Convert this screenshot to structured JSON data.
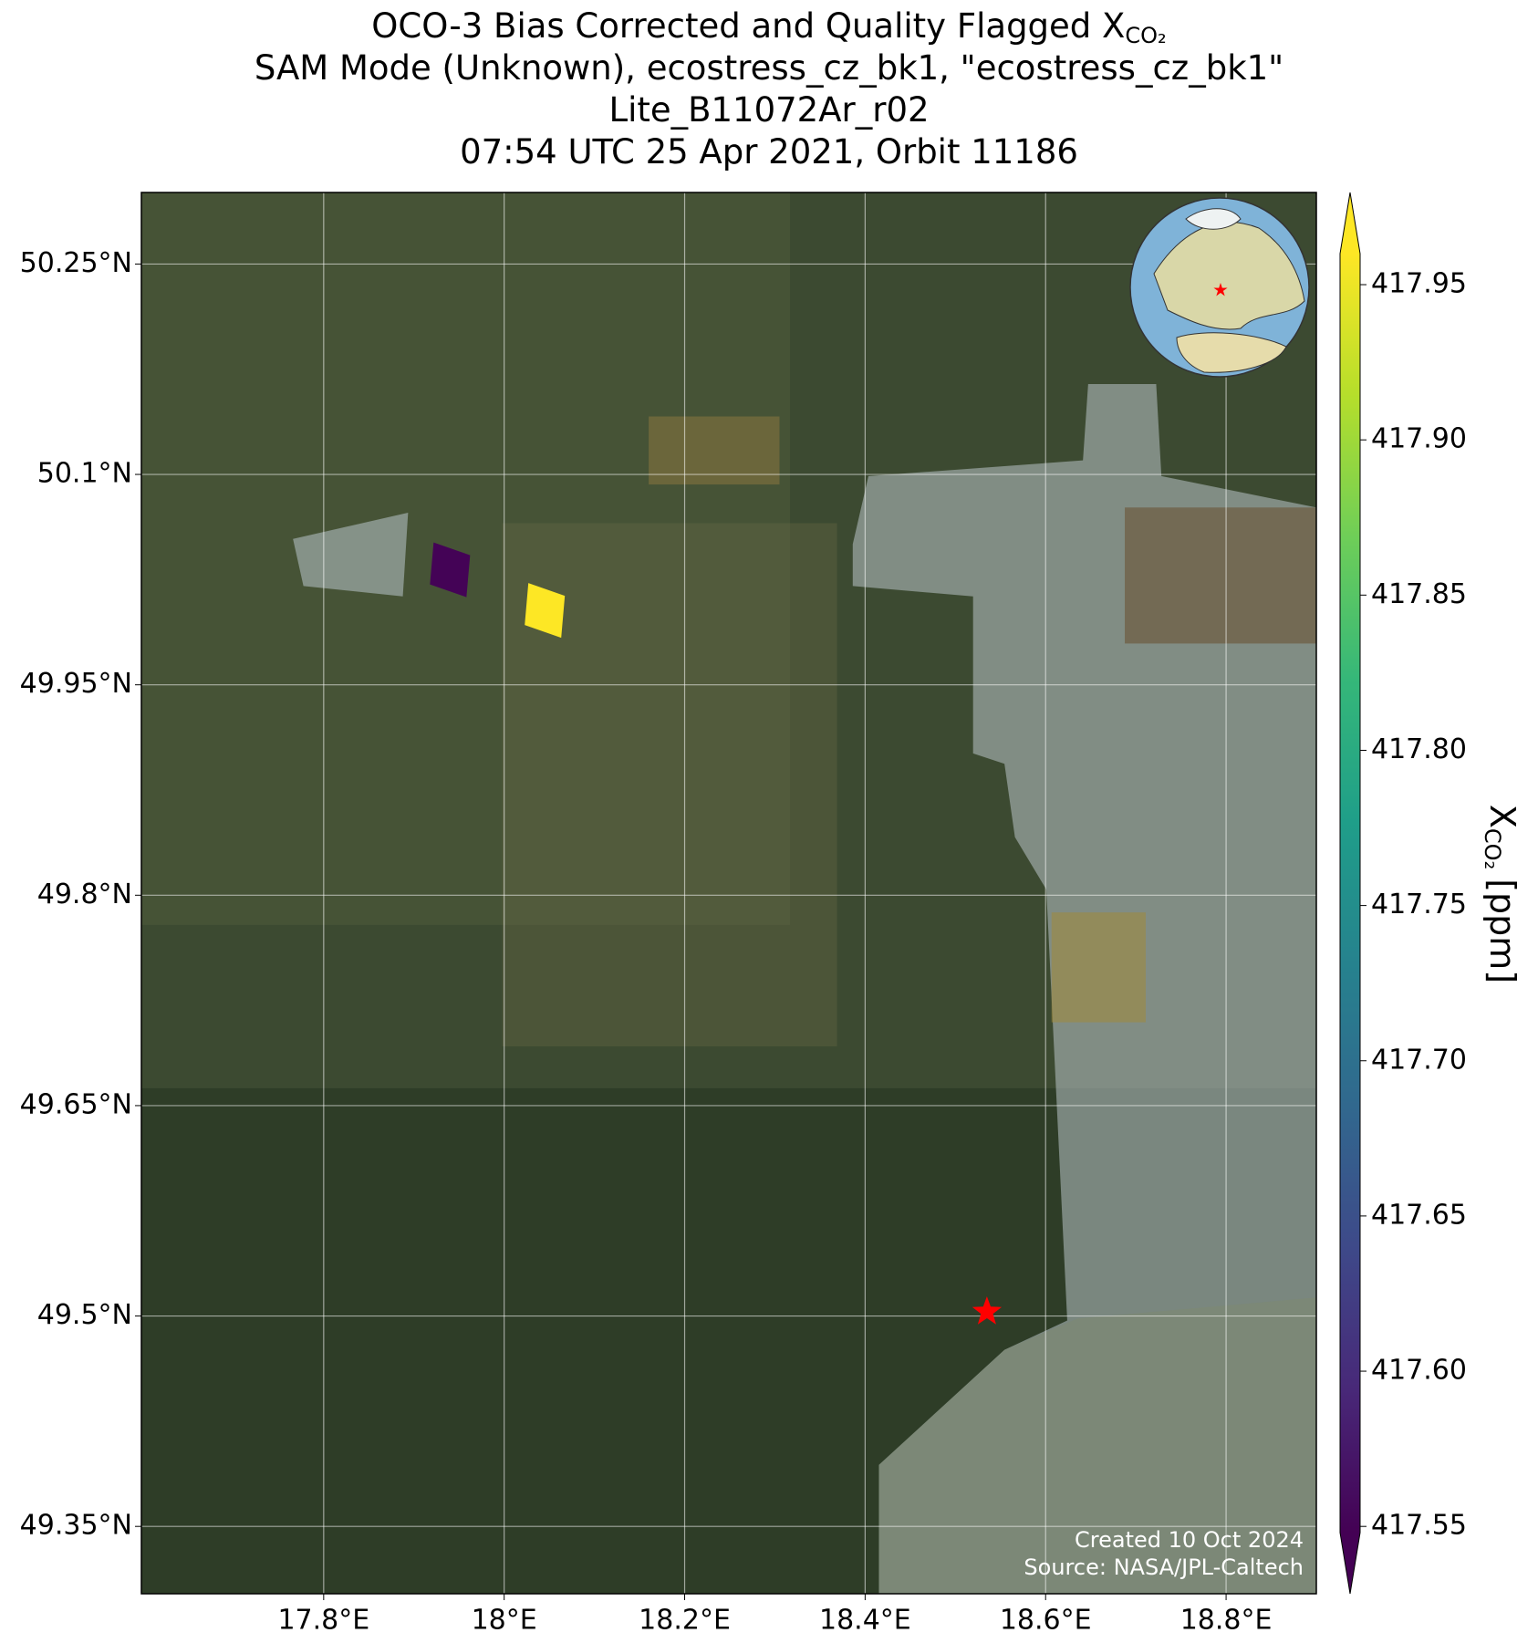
{
  "chart_data": {
    "type": "map",
    "title_lines": [
      "OCO-3 Bias Corrected and Quality Flagged X",
      "SAM Mode (Unknown), ecostress_cz_bk1, \"ecostress_cz_bk1\"",
      "Lite_B11072Ar_r02",
      "07:54 UTC 25 Apr 2021, Orbit 11186"
    ],
    "title_subscript": "CO₂",
    "xlim": [
      17.598,
      18.9
    ],
    "ylim": [
      49.302,
      50.301
    ],
    "xticks": [
      {
        "value": 17.8,
        "label": "17.8°E"
      },
      {
        "value": 18.0,
        "label": "18°E"
      },
      {
        "value": 18.2,
        "label": "18.2°E"
      },
      {
        "value": 18.4,
        "label": "18.4°E"
      },
      {
        "value": 18.6,
        "label": "18.6°E"
      },
      {
        "value": 18.8,
        "label": "18.8°E"
      }
    ],
    "yticks": [
      {
        "value": 49.35,
        "label": "49.35°N"
      },
      {
        "value": 49.5,
        "label": "49.5°N"
      },
      {
        "value": 49.65,
        "label": "49.65°N"
      },
      {
        "value": 49.8,
        "label": "49.8°N"
      },
      {
        "value": 49.95,
        "label": "49.95°N"
      },
      {
        "value": 50.1,
        "label": "50.1°N"
      },
      {
        "value": 50.25,
        "label": "50.25°N"
      }
    ],
    "grid": true,
    "soundings": {
      "lon": [
        17.94,
        18.045
      ],
      "lat": [
        50.032,
        50.003
      ],
      "values": [
        417.55,
        417.96
      ]
    },
    "target": {
      "lon": 18.535,
      "lat": 49.503,
      "color": "#ff0000"
    },
    "colorbar": {
      "clim": [
        417.548,
        417.96
      ],
      "colors": [
        "#440154",
        "#482878",
        "#3e4989",
        "#31688e",
        "#26828e",
        "#1f9e89",
        "#35b779",
        "#6ece58",
        "#b5de2b",
        "#fde725"
      ],
      "ticks": [
        417.55,
        {
          "value": 417.6,
          "label": "417.60"
        },
        417.65,
        {
          "value": 417.7,
          "label": "417.70"
        },
        417.75,
        {
          "value": 417.8,
          "label": "417.80"
        },
        417.85,
        {
          "value": 417.9,
          "label": "417.90"
        },
        417.95
      ],
      "label": "X",
      "label_subscript": "CO₂",
      "label_unit": "[ppm]"
    },
    "credits": [
      "Created 10 Oct 2024",
      "Source: NASA/JPL-Caltech"
    ]
  }
}
